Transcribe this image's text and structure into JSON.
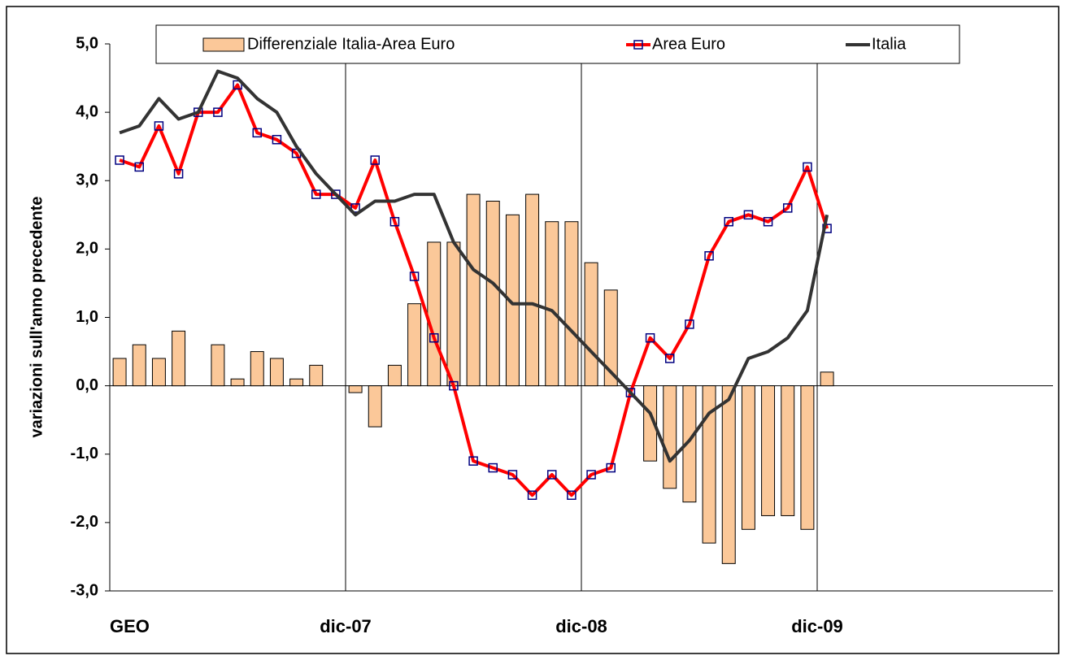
{
  "chart_data": {
    "type": "bar+line",
    "y_label": "variazioni sull'anno precedente",
    "categories": [
      "GEO",
      null,
      null,
      null,
      null,
      null,
      null,
      null,
      null,
      null,
      null,
      null,
      "dic-07",
      null,
      null,
      null,
      null,
      null,
      null,
      null,
      null,
      null,
      null,
      null,
      "dic-08",
      null,
      null,
      null,
      null,
      null,
      null,
      null,
      null,
      null,
      null,
      null,
      "dic-09",
      null,
      null,
      null,
      null,
      null,
      null,
      null,
      null,
      null,
      null,
      null
    ],
    "series": [
      {
        "name": "Differenziale Italia-Area Euro",
        "kind": "bar",
        "color": "#fbc899",
        "values": [
          0.4,
          0.6,
          0.4,
          0.8,
          0,
          0.6,
          0.1,
          0.5,
          0.4,
          0.1,
          0.3,
          0,
          -0.1,
          -0.6,
          0.3,
          1.2,
          2.1,
          2.1,
          2.8,
          2.7,
          2.5,
          2.8,
          2.4,
          2.4,
          1.8,
          1.4,
          0,
          -1.1,
          -1.5,
          -1.7,
          -2.3,
          -2.6,
          -2.1,
          -1.9,
          -1.9,
          -2.1,
          0.2,
          null,
          null,
          null,
          null,
          null,
          null,
          null,
          null,
          null,
          null,
          null
        ]
      },
      {
        "name": "Area Euro",
        "kind": "line",
        "color": "#ff0000",
        "marker_color": "#000080",
        "values": [
          3.3,
          3.2,
          3.8,
          3.1,
          4.0,
          4.0,
          4.4,
          3.7,
          3.6,
          3.4,
          2.8,
          2.8,
          2.6,
          3.3,
          2.4,
          1.6,
          0.7,
          0.0,
          -1.1,
          -1.2,
          -1.3,
          -1.6,
          -1.3,
          -1.6,
          -1.3,
          -1.2,
          -0.1,
          0.7,
          0.4,
          0.9,
          1.9,
          2.4,
          2.5,
          2.4,
          2.6,
          3.2,
          2.3,
          null,
          null,
          null,
          null,
          null,
          null,
          null,
          null,
          null,
          null,
          null
        ]
      },
      {
        "name": "Italia",
        "kind": "line",
        "color": "#333333",
        "values": [
          3.7,
          3.8,
          4.2,
          3.9,
          4.0,
          4.6,
          4.5,
          4.2,
          4.0,
          3.5,
          3.1,
          2.8,
          2.5,
          2.7,
          2.7,
          2.8,
          2.8,
          2.1,
          1.7,
          1.5,
          1.2,
          1.2,
          1.1,
          0.8,
          0.5,
          0.2,
          -0.1,
          -0.4,
          -1.1,
          -0.8,
          -0.4,
          -0.2,
          0.4,
          0.5,
          0.7,
          1.1,
          2.5,
          null,
          null,
          null,
          null,
          null,
          null,
          null,
          null,
          null,
          null,
          null
        ]
      }
    ],
    "ylim": [
      -3,
      5
    ],
    "yticks": [
      {
        "value": -3,
        "label": "-3,0"
      },
      {
        "value": -2,
        "label": "-2,0"
      },
      {
        "value": -1,
        "label": "-1,0"
      },
      {
        "value": 0,
        "label": "0,0"
      },
      {
        "value": 1,
        "label": "1,0"
      },
      {
        "value": 2,
        "label": "2,0"
      },
      {
        "value": 3,
        "label": "3,0"
      },
      {
        "value": 4,
        "label": "4,0"
      },
      {
        "value": 5,
        "label": "5,0"
      }
    ]
  }
}
